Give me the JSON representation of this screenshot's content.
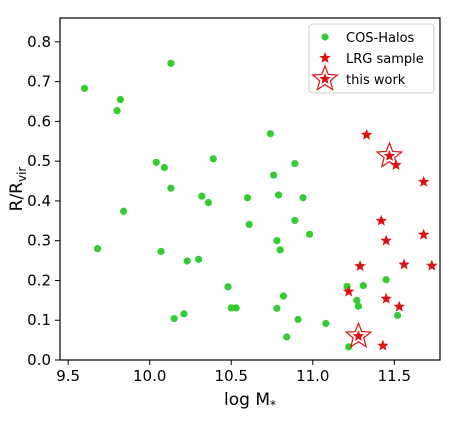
{
  "chart_data": {
    "type": "scatter",
    "xlabel": {
      "main": "log M",
      "sub": "*"
    },
    "ylabel": {
      "main": "R/R",
      "sub": "vir"
    },
    "xlim": [
      9.45,
      11.78
    ],
    "ylim": [
      0.0,
      0.86
    ],
    "x_ticks": [
      "9.5",
      "10.0",
      "10.5",
      "11.0",
      "11.5"
    ],
    "x_tick_values": [
      9.5,
      10.0,
      10.5,
      11.0,
      11.5
    ],
    "y_ticks": [
      "0.0",
      "0.1",
      "0.2",
      "0.3",
      "0.4",
      "0.5",
      "0.6",
      "0.7",
      "0.8"
    ],
    "y_tick_values": [
      0.0,
      0.1,
      0.2,
      0.3,
      0.4,
      0.5,
      0.6,
      0.7,
      0.8
    ],
    "grid": false,
    "legend": {
      "placement": "top-right"
    },
    "series": [
      {
        "name": "COS-Halos",
        "marker": "circle",
        "color": "#33cc33",
        "points": [
          [
            9.6,
            0.683
          ],
          [
            9.8,
            0.627
          ],
          [
            9.82,
            0.655
          ],
          [
            9.68,
            0.28
          ],
          [
            9.84,
            0.374
          ],
          [
            10.04,
            0.497
          ],
          [
            10.09,
            0.484
          ],
          [
            10.13,
            0.746
          ],
          [
            10.13,
            0.432
          ],
          [
            10.07,
            0.273
          ],
          [
            10.15,
            0.104
          ],
          [
            10.21,
            0.116
          ],
          [
            10.23,
            0.249
          ],
          [
            10.3,
            0.253
          ],
          [
            10.32,
            0.412
          ],
          [
            10.36,
            0.396
          ],
          [
            10.39,
            0.506
          ],
          [
            10.48,
            0.184
          ],
          [
            10.5,
            0.131
          ],
          [
            10.53,
            0.131
          ],
          [
            10.6,
            0.408
          ],
          [
            10.61,
            0.341
          ],
          [
            10.74,
            0.569
          ],
          [
            10.76,
            0.465
          ],
          [
            10.78,
            0.3
          ],
          [
            10.79,
            0.415
          ],
          [
            10.8,
            0.277
          ],
          [
            10.78,
            0.13
          ],
          [
            10.82,
            0.161
          ],
          [
            10.84,
            0.058
          ],
          [
            10.89,
            0.494
          ],
          [
            10.89,
            0.351
          ],
          [
            10.91,
            0.102
          ],
          [
            10.94,
            0.408
          ],
          [
            10.98,
            0.316
          ],
          [
            11.08,
            0.092
          ],
          [
            11.21,
            0.185
          ],
          [
            11.22,
            0.033
          ],
          [
            11.27,
            0.15
          ],
          [
            11.28,
            0.135
          ],
          [
            11.31,
            0.187
          ],
          [
            11.45,
            0.202
          ],
          [
            11.52,
            0.112
          ]
        ]
      },
      {
        "name": "LRG sample",
        "marker": "star",
        "color": "#dd1111",
        "points": [
          [
            11.33,
            0.566
          ],
          [
            11.22,
            0.172
          ],
          [
            11.29,
            0.236
          ],
          [
            11.42,
            0.35
          ],
          [
            11.45,
            0.3
          ],
          [
            11.45,
            0.154
          ],
          [
            11.43,
            0.036
          ],
          [
            11.51,
            0.49
          ],
          [
            11.53,
            0.134
          ],
          [
            11.56,
            0.24
          ],
          [
            11.68,
            0.448
          ],
          [
            11.68,
            0.315
          ],
          [
            11.73,
            0.237
          ]
        ]
      },
      {
        "name": "this work",
        "marker": "star-open",
        "color": "#dd1111",
        "points": [
          [
            11.47,
            0.513
          ],
          [
            11.28,
            0.06
          ]
        ]
      }
    ]
  }
}
